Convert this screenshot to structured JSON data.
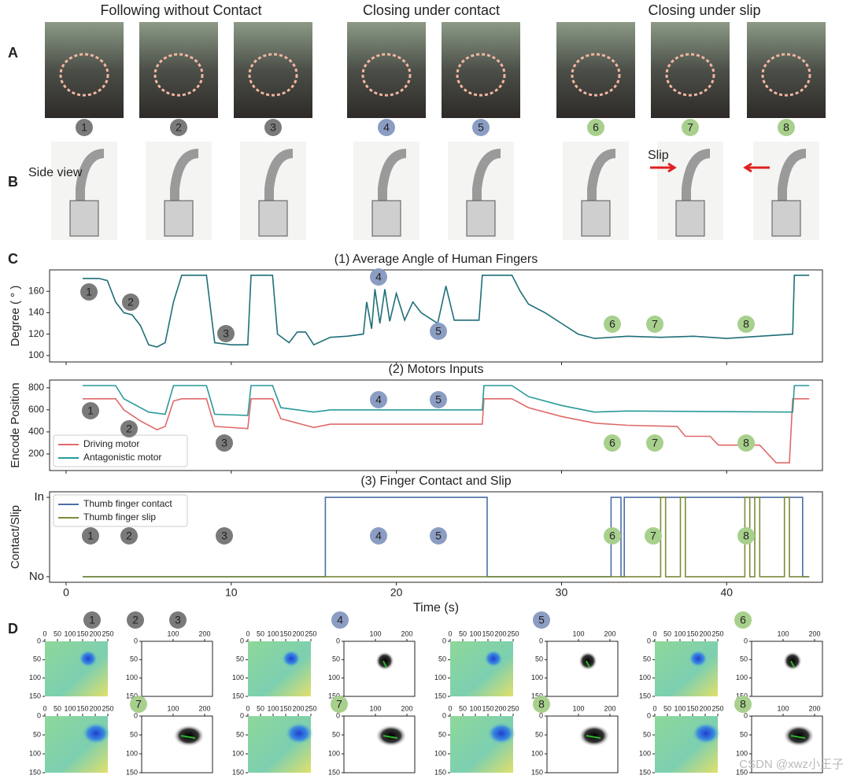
{
  "panel_labels": [
    "A",
    "B",
    "C",
    "D"
  ],
  "group_titles": [
    "Following without Contact",
    "Closing under contact",
    "Closing under slip"
  ],
  "step_numbers": [
    "1",
    "2",
    "3",
    "4",
    "5",
    "6",
    "7",
    "8"
  ],
  "side_view": "Side view",
  "slip_label": "Slip",
  "chart_data": [
    {
      "type": "line",
      "title": "(1) Average Angle of Human Fingers",
      "y_label": "Degree ( ° )",
      "xlim": [
        -1,
        45.8
      ],
      "ylim": [
        94,
        180
      ],
      "yticks": [
        100,
        120,
        140,
        160
      ],
      "annotations": [
        "1",
        "2",
        "3",
        "4",
        "5",
        "6",
        "7",
        "8"
      ],
      "series": [
        {
          "name": "Average angle",
          "color": "#1f6f78",
          "x": [
            1,
            2,
            2.5,
            3,
            3.5,
            4,
            4.5,
            5,
            5.5,
            6,
            6.5,
            7,
            8,
            8.5,
            9,
            10,
            11,
            11.2,
            12.5,
            12.8,
            13.5,
            14,
            14.5,
            15,
            16,
            17,
            18,
            18.2,
            18.5,
            18.7,
            19,
            19.3,
            19.6,
            20,
            20.5,
            21,
            21.5,
            22,
            22.5,
            23,
            23.5,
            25,
            25.2,
            27,
            27.5,
            28,
            29,
            30,
            31,
            32,
            34,
            36,
            38,
            40,
            42,
            44,
            44.1,
            45
          ],
          "values": [
            172,
            172,
            170,
            150,
            140,
            138,
            128,
            110,
            108,
            112,
            150,
            175,
            175,
            175,
            112,
            110,
            110,
            175,
            175,
            120,
            112,
            122,
            122,
            110,
            117,
            118,
            120,
            150,
            125,
            162,
            130,
            162,
            132,
            158,
            133,
            150,
            140,
            135,
            130,
            165,
            133,
            133,
            175,
            175,
            160,
            148,
            140,
            130,
            120,
            116,
            118,
            117,
            118,
            116,
            118,
            120,
            175,
            175
          ]
        }
      ]
    },
    {
      "type": "line",
      "title": "(2) Motors Inputs",
      "y_label": "Encode Position",
      "xlim": [
        -1,
        45.8
      ],
      "ylim": [
        50,
        870
      ],
      "yticks": [
        200,
        400,
        600,
        800
      ],
      "legend": "lower left",
      "annotations": [
        "1",
        "2",
        "3",
        "4",
        "5",
        "6",
        "7",
        "8"
      ],
      "series": [
        {
          "name": "Driving motor",
          "color": "#e06a6a",
          "x": [
            1,
            3,
            3.5,
            4.5,
            5.5,
            6,
            6.5,
            7,
            8.5,
            9,
            11,
            11.2,
            12.5,
            13,
            14,
            15,
            16,
            25.2,
            25.3,
            27,
            28,
            30,
            32,
            34,
            37,
            37.5,
            39,
            39.5,
            42,
            43,
            43.8,
            44,
            45
          ],
          "values": [
            700,
            700,
            600,
            500,
            420,
            450,
            680,
            700,
            700,
            450,
            430,
            700,
            700,
            520,
            480,
            440,
            470,
            470,
            700,
            700,
            620,
            540,
            480,
            460,
            450,
            360,
            360,
            280,
            280,
            120,
            120,
            700,
            700
          ]
        },
        {
          "name": "Antagonistic motor",
          "color": "#2a9a9a",
          "x": [
            1,
            3,
            3.5,
            5,
            6,
            6.5,
            8.5,
            9,
            11,
            11.2,
            12.5,
            13,
            15,
            16,
            25.2,
            25.3,
            27,
            28,
            30,
            32,
            34,
            44,
            44.1,
            45
          ],
          "values": [
            820,
            820,
            700,
            580,
            560,
            820,
            820,
            560,
            550,
            820,
            820,
            620,
            580,
            600,
            600,
            820,
            820,
            720,
            640,
            580,
            590,
            580,
            820,
            820
          ]
        }
      ]
    },
    {
      "type": "line",
      "title": "(3) Finger Contact and Slip",
      "y_label": "Contact/Slip",
      "x_label": "Time (s)",
      "xlim": [
        -1,
        45.8
      ],
      "xticks": [
        0,
        10,
        20,
        30,
        40
      ],
      "ylim": [
        -0.07,
        1.07
      ],
      "yticks": [
        {
          "value": 0,
          "label": "No"
        },
        {
          "value": 1,
          "label": "In"
        }
      ],
      "legend": "upper left",
      "annotations": [
        "1",
        "2",
        "3",
        "4",
        "5",
        "6",
        "7",
        "8"
      ],
      "series": [
        {
          "name": "Thumb finger contact",
          "color": "#4a6fa5",
          "x": [
            1,
            15.7,
            15.7,
            25.5,
            25.5,
            33,
            33,
            33.6,
            33.6,
            33.8,
            33.8,
            44.6,
            44.6,
            45
          ],
          "values": [
            0,
            0,
            1,
            1,
            0,
            0,
            1,
            1,
            0,
            0,
            1,
            1,
            0,
            0
          ]
        },
        {
          "name": "Thumb finger slip",
          "color": "#7a8c3a",
          "x": [
            1,
            36,
            36,
            36.3,
            36.3,
            37.2,
            37.2,
            37.5,
            37.5,
            41.1,
            41.1,
            41.4,
            41.4,
            41.7,
            41.7,
            42,
            42,
            43.5,
            43.5,
            43.8,
            43.8,
            45
          ],
          "values": [
            0,
            0,
            1,
            1,
            0,
            0,
            1,
            1,
            0,
            0,
            1,
            1,
            0,
            0,
            1,
            1,
            0,
            0,
            1,
            1,
            0,
            0
          ]
        }
      ]
    }
  ],
  "panel_d": {
    "heat_xticks": [
      0,
      50,
      100,
      150,
      200,
      250
    ],
    "contact_xticks": [
      100,
      200
    ],
    "yticks": [
      0,
      50,
      100,
      150
    ],
    "badges": [
      "1",
      "2",
      "3",
      "4",
      "5",
      "6",
      "7",
      "7",
      "8",
      "8"
    ]
  },
  "watermark": "CSDN @xwz小王子"
}
